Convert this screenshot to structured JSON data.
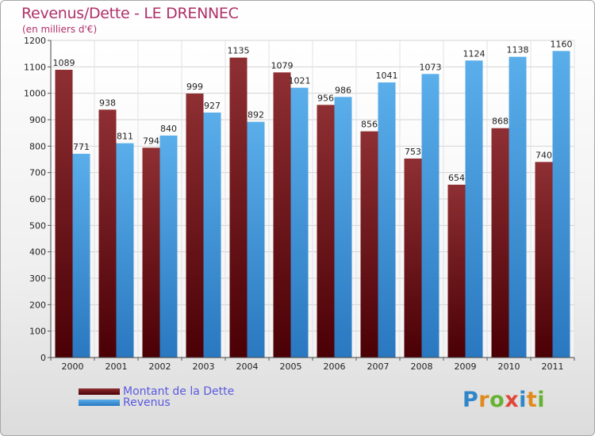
{
  "header": {
    "title": "Revenus/Dette - LE DRENNEC",
    "subtitle": "(en milliers d'€)"
  },
  "logo": {
    "letters": [
      {
        "char": "P",
        "color": "#2f86c9"
      },
      {
        "char": "r",
        "color": "#e08a1e"
      },
      {
        "char": "o",
        "color": "#66b233"
      },
      {
        "char": "x",
        "color": "#e0463a"
      },
      {
        "char": "i",
        "color": "#2f86c9"
      },
      {
        "char": "t",
        "color": "#e08a1e"
      },
      {
        "char": "i",
        "color": "#66b233"
      }
    ]
  },
  "chart_data": {
    "type": "bar",
    "categories": [
      "2000",
      "2001",
      "2002",
      "2003",
      "2004",
      "2005",
      "2006",
      "2007",
      "2008",
      "2009",
      "2010",
      "2011"
    ],
    "series": [
      {
        "name": "Montant de la Dette",
        "color": "#7a1a1f",
        "values": [
          1089,
          938,
          794,
          999,
          1135,
          1079,
          956,
          856,
          753,
          654,
          868,
          740
        ]
      },
      {
        "name": "Revenus",
        "color": "#4fa6e6",
        "values": [
          771,
          811,
          840,
          927,
          892,
          1021,
          986,
          1041,
          1073,
          1124,
          1138,
          1160
        ]
      }
    ],
    "yticks": [
      0,
      100,
      200,
      300,
      400,
      500,
      600,
      700,
      800,
      900,
      1000,
      1100,
      1200
    ],
    "ylim": [
      0,
      1200
    ],
    "grid": true,
    "legend": "bottom-left"
  }
}
